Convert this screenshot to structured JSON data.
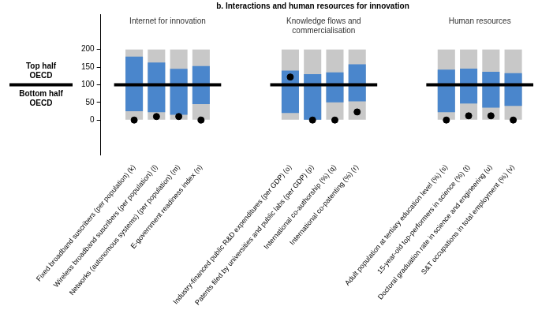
{
  "chart_data": {
    "type": "bar",
    "title": "b. Interactions and human resources for innovation",
    "categories": [
      null,
      "Fixed broadband suscribers (per population) (k)",
      "Wireless broadband suscribers (per population) (l)",
      "Networks (autonomous systems) (per population) (m)",
      "E-government readiness index (n)",
      null,
      null,
      null,
      "Industry-financed public R&D expenditures (per GDP) (o)",
      "Patents filed by universities and public labs (per GDP) (p)",
      "International co-authorship (%) (q)",
      "International co-patenting (%) (r)",
      null,
      null,
      null,
      "Adult population at tertiary education level (%) (s)",
      "15-year-old top-performers in science (%) (t)",
      "Doctoral graduation rate in science and engineering (u)",
      "S&T occupations in total employment (%) (v)",
      null
    ],
    "series": [
      {
        "type": "bar",
        "color": "#c8c8c8",
        "values": [
          null,
          [
            0,
            200
          ],
          [
            0,
            200
          ],
          [
            0,
            200
          ],
          [
            0,
            200
          ],
          null,
          null,
          null,
          [
            0,
            200
          ],
          [
            0,
            200
          ],
          [
            0,
            200
          ],
          [
            0,
            200
          ],
          null,
          null,
          null,
          [
            0,
            200
          ],
          [
            0,
            200
          ],
          [
            0,
            200
          ],
          [
            0,
            200
          ],
          null
        ]
      },
      {
        "type": "bar",
        "color": "#4a86cc",
        "values": [
          null,
          [
            25,
            180
          ],
          [
            22,
            163
          ],
          [
            15,
            145
          ],
          [
            45,
            153
          ],
          null,
          null,
          null,
          [
            20,
            140
          ],
          [
            0,
            130
          ],
          [
            50,
            135
          ],
          [
            53,
            158
          ],
          null,
          null,
          null,
          [
            22,
            143
          ],
          [
            47,
            146
          ],
          [
            35,
            137
          ],
          [
            40,
            133
          ],
          null
        ]
      },
      {
        "type": "scatter",
        "marker": "circle",
        "color": "#000000",
        "values": [
          null,
          0,
          10,
          10,
          0,
          null,
          null,
          null,
          122,
          0,
          0,
          23,
          null,
          null,
          null,
          0,
          12,
          12,
          0,
          null
        ]
      }
    ],
    "reference_line": 100,
    "group_labels": [
      [
        "Internet for innovation"
      ],
      [
        "Knowledge flows and",
        "commercialisation"
      ],
      [
        "Human resources"
      ]
    ],
    "side_labels": {
      "above": [
        "Top half",
        "OECD"
      ],
      "below": [
        "Bottom half",
        "OECD"
      ]
    },
    "ylim": [
      -100,
      300
    ],
    "yticks": [
      0,
      50,
      100,
      150,
      200
    ],
    "grid": false
  }
}
